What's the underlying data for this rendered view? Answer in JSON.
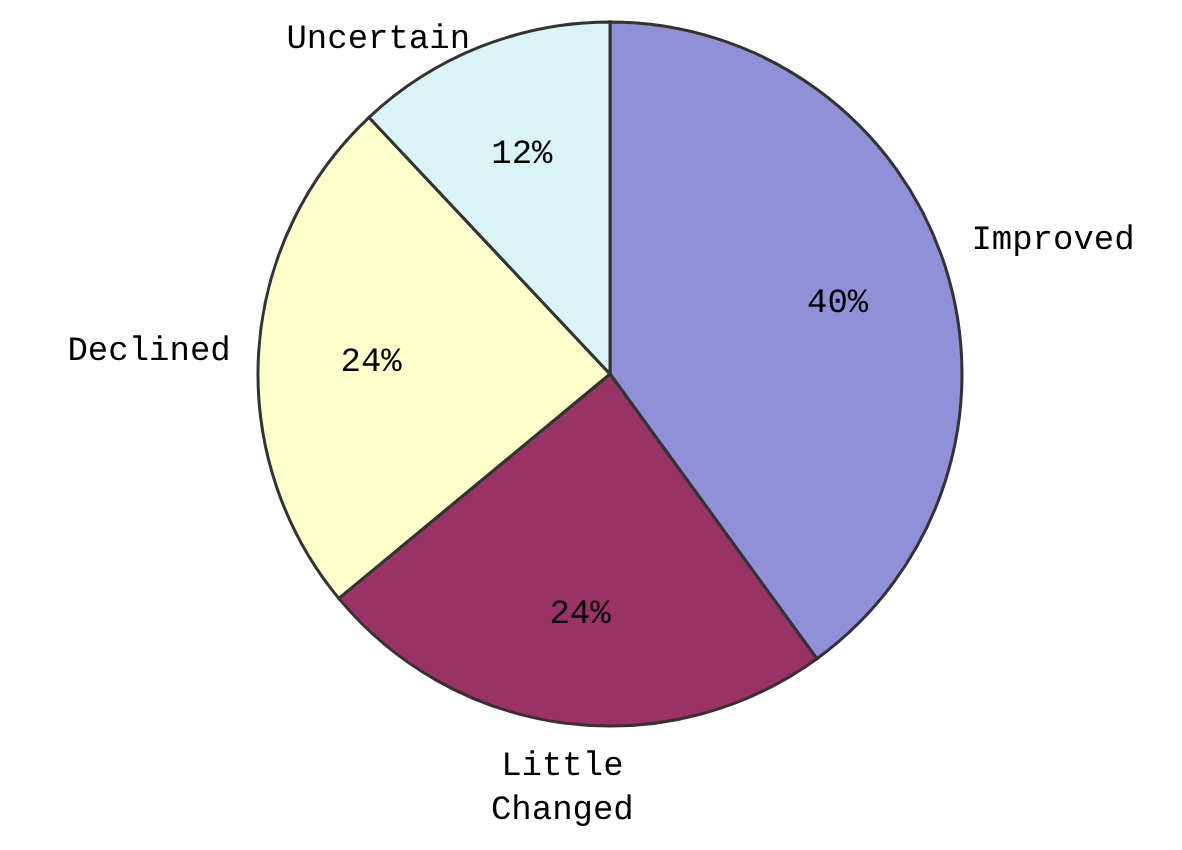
{
  "chart_data": {
    "type": "pie",
    "categories": [
      "Improved",
      "Little Changed",
      "Declined",
      "Uncertain"
    ],
    "values": [
      40,
      24,
      24,
      12
    ],
    "colors": [
      "#9090d8",
      "#993366",
      "#ffffcc",
      "#d8f4f4"
    ],
    "value_labels": [
      "40%",
      "24%",
      "24%",
      "12%"
    ],
    "legend": false
  }
}
